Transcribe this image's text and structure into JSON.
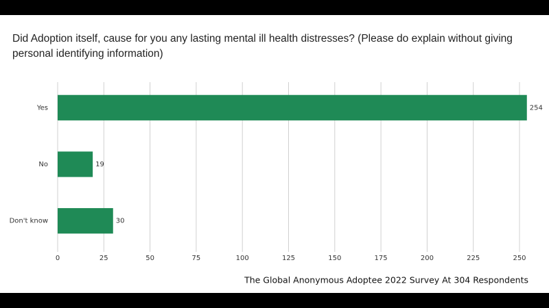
{
  "chart_data": {
    "type": "bar",
    "orientation": "horizontal",
    "title": "Did Adoption itself, cause for you any lasting mental ill health distresses? (Please do explain without giving personal identifying information)",
    "categories": [
      "Yes",
      "No",
      "Don't know"
    ],
    "values": [
      254,
      19,
      30
    ],
    "color": "#1f8a56",
    "xlim": [
      0,
      250
    ],
    "xticks": [
      0,
      25,
      50,
      75,
      100,
      125,
      150,
      175,
      200,
      225,
      250
    ],
    "grid": true,
    "footer": "The Global Anonymous Adoptee 2022 Survey At 304 Respondents"
  }
}
